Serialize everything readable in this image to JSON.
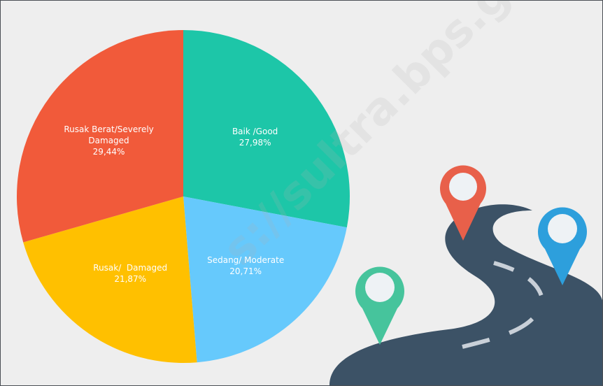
{
  "chart_data": {
    "type": "pie",
    "categories": [
      "Baik /Good",
      "Sedang/ Moderate",
      "Rusak/  Damaged",
      "Rusak Berat/Severely Damaged"
    ],
    "values": [
      27.98,
      20.71,
      21.87,
      29.44
    ],
    "value_labels": [
      "27,98%",
      "20,71%",
      "21,87%",
      "29,44%"
    ],
    "colors": [
      "#1dc6a8",
      "#66c9fc",
      "#ffc000",
      "#f15a3a"
    ],
    "watermark": "s://sultra.bps.go.id"
  }
}
